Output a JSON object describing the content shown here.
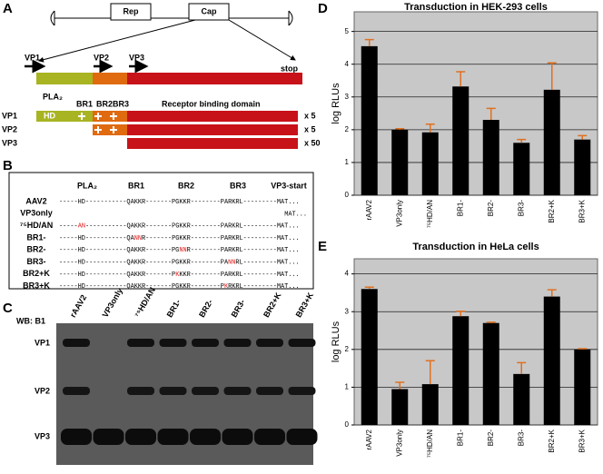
{
  "panels": {
    "letters": [
      "A",
      "B",
      "C",
      "D",
      "E"
    ],
    "a": {
      "genome": [
        "Rep",
        "Cap"
      ],
      "vp": [
        "VP1",
        "VP2",
        "VP3"
      ],
      "stop": "stop",
      "domains": [
        "PLA₂",
        "BR1",
        "BR2",
        "BR3",
        "Receptor binding domain"
      ],
      "hd": "HD",
      "rows": [
        {
          "name": "VP1",
          "copies": "x 5"
        },
        {
          "name": "VP2",
          "copies": "x 5"
        },
        {
          "name": "VP3",
          "copies": "x 50"
        }
      ]
    },
    "b": {
      "headers": [
        "PLA₂",
        "BR1",
        "BR2",
        "BR3",
        "VP3-start"
      ],
      "rows": [
        {
          "name": "AAV2",
          "seq": [
            {
              "t": "-----HD-----------QAKKR-------PGKKR--------PARKRL---------MAT..."
            }
          ]
        },
        {
          "name": "VP3only",
          "seq": [
            {
              "t": "MAT..."
            }
          ]
        },
        {
          "name": "⁷⁵HD/AN",
          "seq": [
            {
              "t": "-----"
            },
            {
              "t": "AN",
              "red": true
            },
            {
              "t": "-----------QAKKR-------PGKKR--------PARKRL---------MAT..."
            }
          ]
        },
        {
          "name": "BR1-",
          "seq": [
            {
              "t": "-----HD-----------QA"
            },
            {
              "t": "NN",
              "red": true
            },
            {
              "t": "R-------PGKKR--------PARKRL---------MAT..."
            }
          ]
        },
        {
          "name": "BR2-",
          "seq": [
            {
              "t": "-----HD-----------QAKKR-------PG"
            },
            {
              "t": "NN",
              "red": true
            },
            {
              "t": "R--------PARKRL---------MAT..."
            }
          ]
        },
        {
          "name": "BR3-",
          "seq": [
            {
              "t": "-----HD-----------QAKKR-------PGKKR--------PA"
            },
            {
              "t": "NN",
              "red": true
            },
            {
              "t": "RL---------MAT..."
            }
          ]
        },
        {
          "name": "BR2+K",
          "seq": [
            {
              "t": "-----HD-----------QAKKR-------P"
            },
            {
              "t": "K",
              "red": true
            },
            {
              "t": "KKR--------PARKRL---------MAT..."
            }
          ]
        },
        {
          "name": "BR3+K",
          "seq": [
            {
              "t": "-----HD-----------QAKKR-------PGKKR--------P"
            },
            {
              "t": "K",
              "red": true
            },
            {
              "t": "RKRL---------MAT..."
            }
          ]
        }
      ]
    },
    "c": {
      "wb": "WB: B1",
      "lanes": [
        "rAAV2",
        "VP3only",
        "⁷⁵HD/AN",
        "BR1-",
        "BR2-",
        "BR3-",
        "BR2+K",
        "BR3+K"
      ],
      "bands": [
        "VP1",
        "VP2",
        "VP3"
      ]
    }
  },
  "chart_data": [
    {
      "type": "bar",
      "title": "Transduction in HEK-293 cells",
      "y_label": "log RLUs",
      "categories": [
        "rAAV2",
        "VP3only",
        "⁷⁵HD/AN",
        "BR1-",
        "BR2-",
        "BR3-",
        "BR2+K",
        "BR3+K"
      ],
      "values": [
        4.55,
        2.0,
        1.92,
        3.32,
        2.3,
        1.6,
        3.22,
        1.7
      ],
      "errors": [
        0.2,
        0.03,
        0.25,
        0.45,
        0.35,
        0.1,
        0.82,
        0.12
      ],
      "color": "#000000",
      "error_color": "#e07020",
      "ylim": [
        0,
        5.6
      ],
      "yticks": [
        0,
        1,
        2,
        3,
        4,
        5
      ],
      "grid": true
    },
    {
      "type": "bar",
      "title": "Transduction in HeLa cells",
      "y_label": "log RLUs",
      "categories": [
        "rAAV2",
        "VP3only",
        "⁷⁵HD/AN",
        "BR1-",
        "BR2-",
        "BR3-",
        "BR2+K",
        "BR3+K"
      ],
      "values": [
        3.6,
        0.95,
        1.08,
        2.88,
        2.7,
        1.35,
        3.4,
        2.0
      ],
      "errors": [
        0.05,
        0.18,
        0.62,
        0.13,
        0.02,
        0.3,
        0.18,
        0.02
      ],
      "color": "#000000",
      "error_color": "#e07020",
      "ylim": [
        0,
        4.4
      ],
      "yticks": [
        0,
        1,
        2,
        3,
        4
      ],
      "grid": true
    }
  ]
}
